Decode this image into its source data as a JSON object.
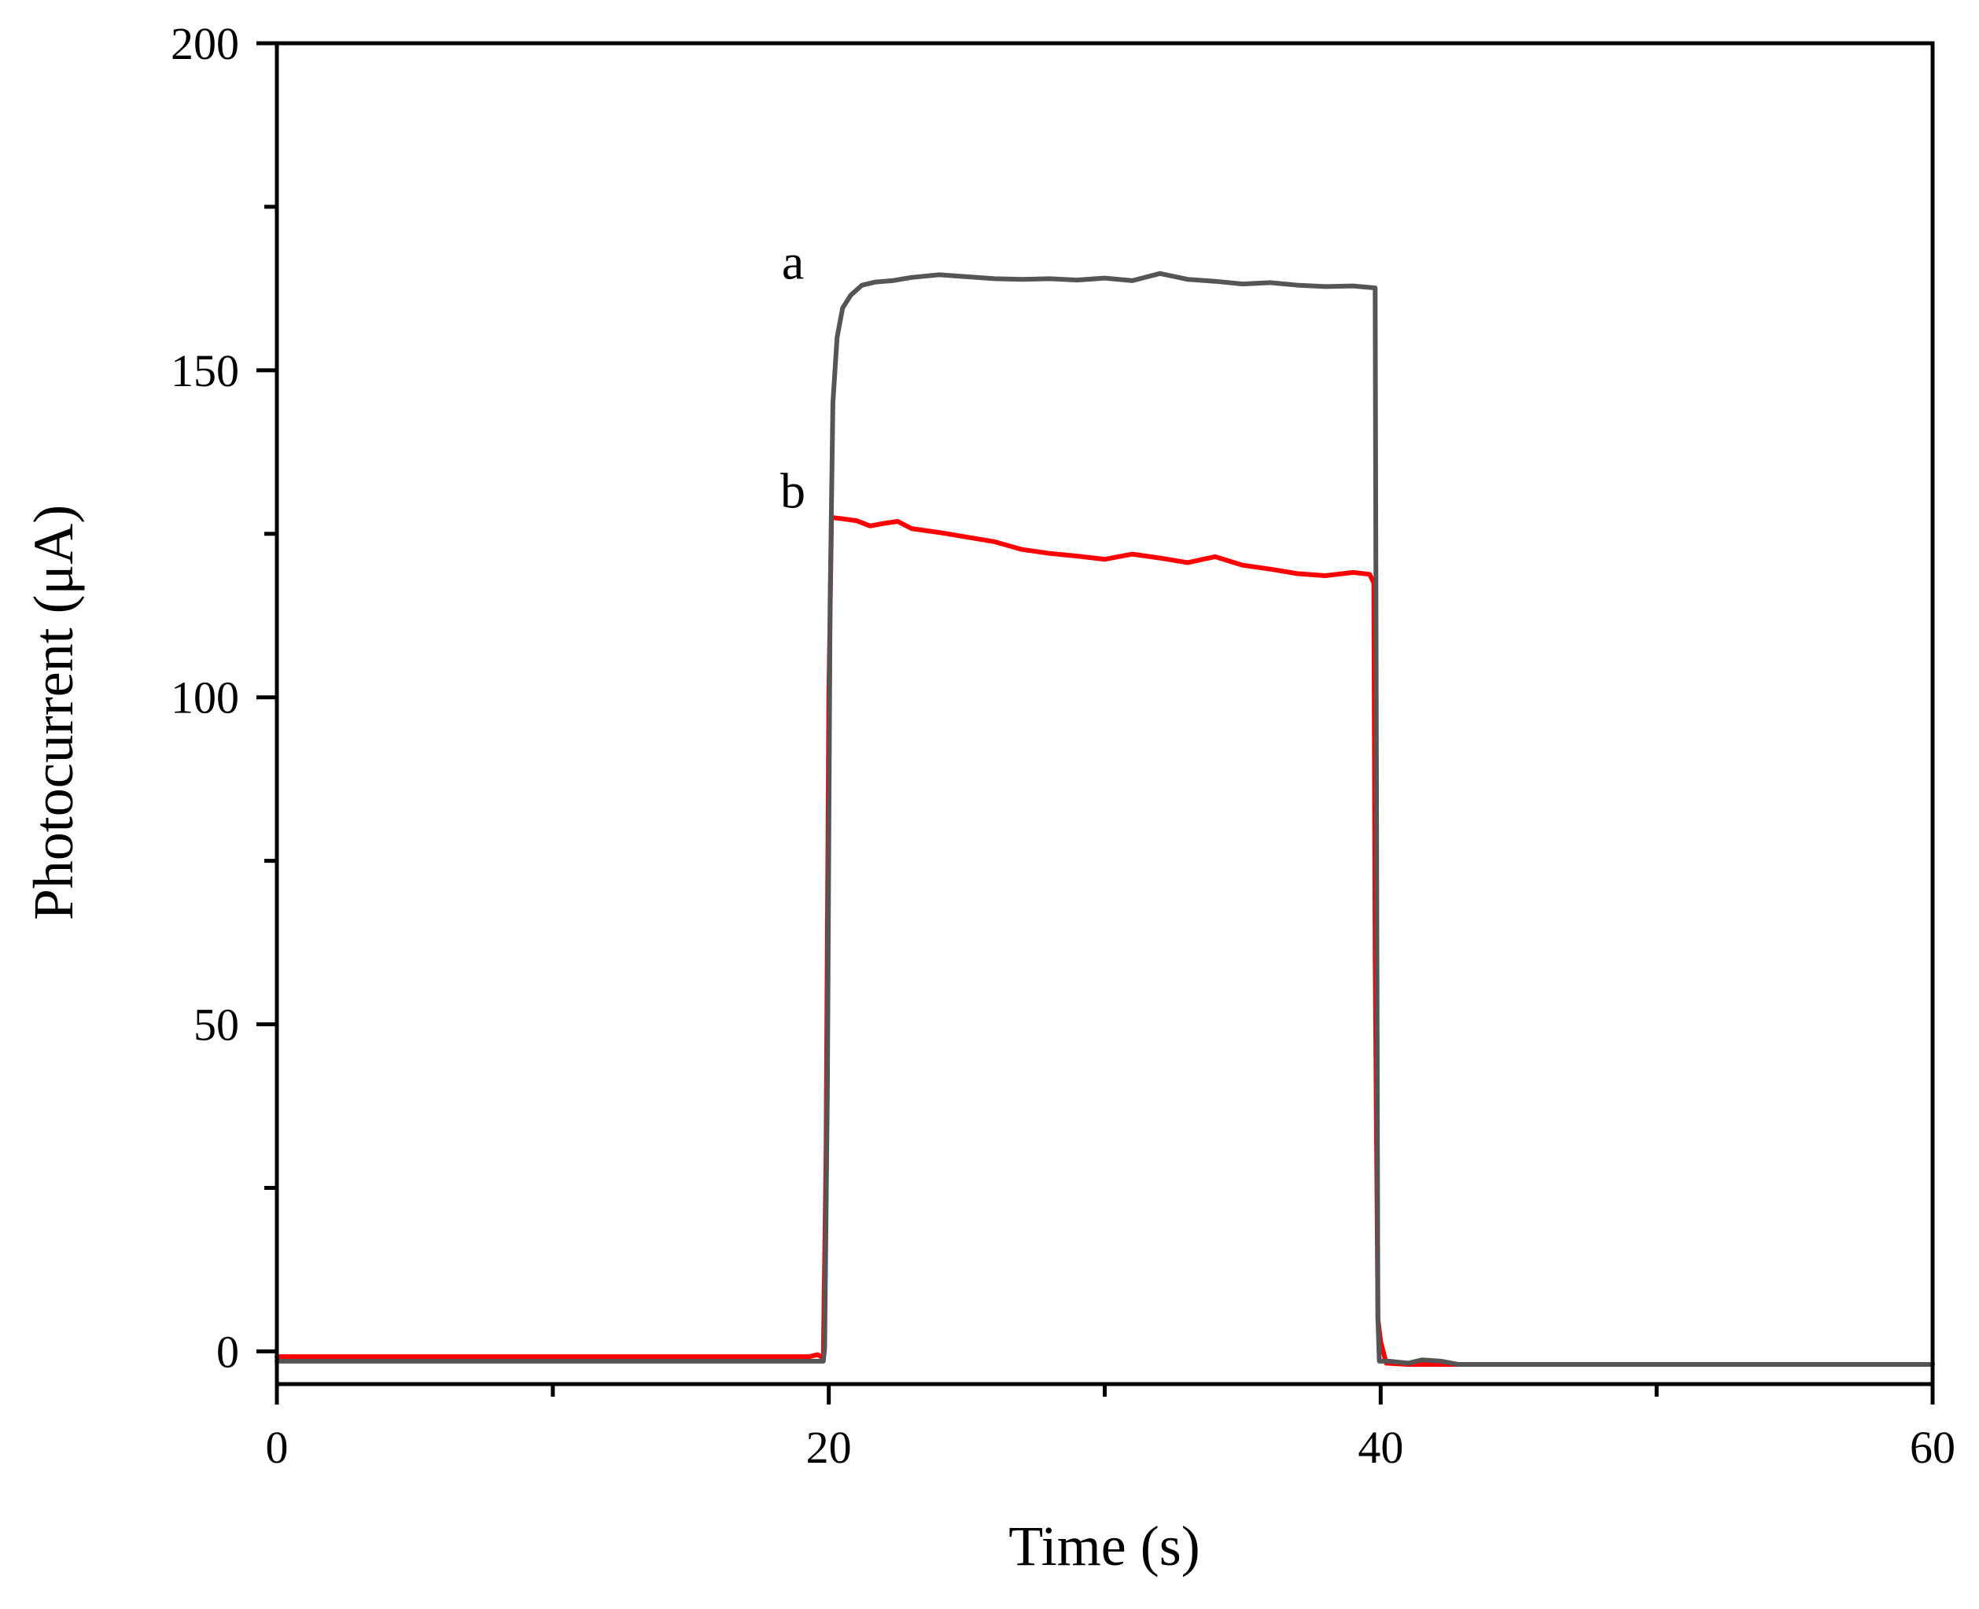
{
  "chart_data": {
    "type": "line",
    "title": "",
    "xlabel": "Time (s)",
    "ylabel": "Photocurrent (μA)",
    "xlim": [
      0,
      60
    ],
    "ylim": [
      -5,
      200
    ],
    "x_ticks": [
      "0",
      "20",
      "40",
      "60"
    ],
    "y_ticks": [
      "0",
      "50",
      "100",
      "150",
      "200"
    ],
    "grid": false,
    "legend": "none",
    "series": [
      {
        "name": "a",
        "color": "#555555",
        "points": [
          [
            0,
            -1.5
          ],
          [
            19.8,
            -1.5
          ],
          [
            19.85,
            0.5
          ],
          [
            19.95,
            40
          ],
          [
            20.05,
            115
          ],
          [
            20.15,
            145
          ],
          [
            20.3,
            155
          ],
          [
            20.5,
            159.5
          ],
          [
            20.8,
            161.5
          ],
          [
            21.2,
            163
          ],
          [
            21.7,
            163.5
          ],
          [
            22.3,
            163.7
          ],
          [
            23,
            164.2
          ],
          [
            24,
            164.6
          ],
          [
            25,
            164.3
          ],
          [
            26,
            164.0
          ],
          [
            27,
            163.9
          ],
          [
            28,
            164.0
          ],
          [
            29,
            163.8
          ],
          [
            30,
            164.1
          ],
          [
            31,
            163.7
          ],
          [
            32,
            164.8
          ],
          [
            33,
            163.9
          ],
          [
            34,
            163.6
          ],
          [
            35,
            163.2
          ],
          [
            36,
            163.4
          ],
          [
            37,
            163.0
          ],
          [
            38,
            162.8
          ],
          [
            39,
            162.9
          ],
          [
            39.8,
            162.6
          ],
          [
            39.85,
            80
          ],
          [
            39.9,
            5
          ],
          [
            39.95,
            -1.5
          ],
          [
            40.3,
            -1.5
          ],
          [
            41,
            -1.8
          ],
          [
            41.5,
            -1.3
          ],
          [
            42.2,
            -1.5
          ],
          [
            42.8,
            -2.0
          ],
          [
            45,
            -2.0
          ],
          [
            60,
            -2.0
          ]
        ]
      },
      {
        "name": "b",
        "color": "#ff0000",
        "points": [
          [
            0,
            -0.8
          ],
          [
            19.3,
            -0.8
          ],
          [
            19.6,
            -0.5
          ],
          [
            19.8,
            -1.0
          ],
          [
            19.9,
            30
          ],
          [
            20.0,
            100
          ],
          [
            20.1,
            127.5
          ],
          [
            20.5,
            127.3
          ],
          [
            21,
            127.0
          ],
          [
            21.5,
            126.2
          ],
          [
            22,
            126.6
          ],
          [
            22.5,
            126.9
          ],
          [
            23,
            125.8
          ],
          [
            24,
            125.2
          ],
          [
            25,
            124.5
          ],
          [
            26,
            123.8
          ],
          [
            27,
            122.6
          ],
          [
            28,
            122.0
          ],
          [
            29,
            121.6
          ],
          [
            30,
            121.1
          ],
          [
            31,
            121.9
          ],
          [
            32,
            121.3
          ],
          [
            33,
            120.6
          ],
          [
            34,
            121.5
          ],
          [
            35,
            120.2
          ],
          [
            36,
            119.6
          ],
          [
            37,
            118.9
          ],
          [
            38,
            118.6
          ],
          [
            39,
            119.1
          ],
          [
            39.6,
            118.8
          ],
          [
            39.75,
            117.5
          ],
          [
            39.8,
            60
          ],
          [
            39.9,
            5
          ],
          [
            40.0,
            1.5
          ],
          [
            40.2,
            -1.8
          ],
          [
            41,
            -2.0
          ],
          [
            60,
            -2.0
          ]
        ]
      }
    ],
    "annotations": [
      {
        "text": "a",
        "x": 18.7,
        "y": 164
      },
      {
        "text": "b",
        "x": 18.7,
        "y": 129
      }
    ]
  }
}
